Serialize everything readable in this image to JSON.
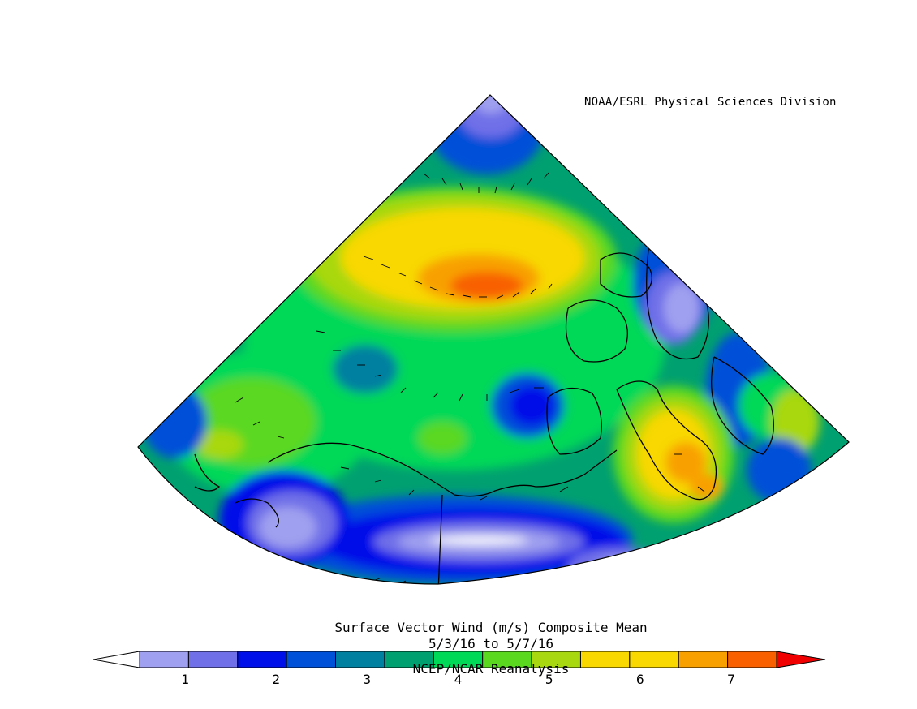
{
  "credit": "NOAA/ESRL Physical Sciences Division",
  "title": "Surface Vector Wind (m/s) Composite Mean",
  "date_range": "5/3/16  to 5/7/16",
  "source": "NCEP/NCAR Reanalysis",
  "colorbar": {
    "colors": [
      "#ffffff",
      "#a0a0f0",
      "#7070e8",
      "#0010e8",
      "#0050d8",
      "#0080a0",
      "#00a070",
      "#00d858",
      "#5ad820",
      "#a8d810",
      "#f8d800",
      "#f8d800",
      "#f8a000",
      "#f86000",
      "#f00000"
    ],
    "tick_labels": [
      "1",
      "2",
      "3",
      "4",
      "5",
      "6",
      "7"
    ],
    "tick_values": [
      1,
      2,
      3,
      4,
      5,
      6,
      7
    ],
    "min": 0.5,
    "max": 7.5
  },
  "projection": "polar stereographic sector"
}
